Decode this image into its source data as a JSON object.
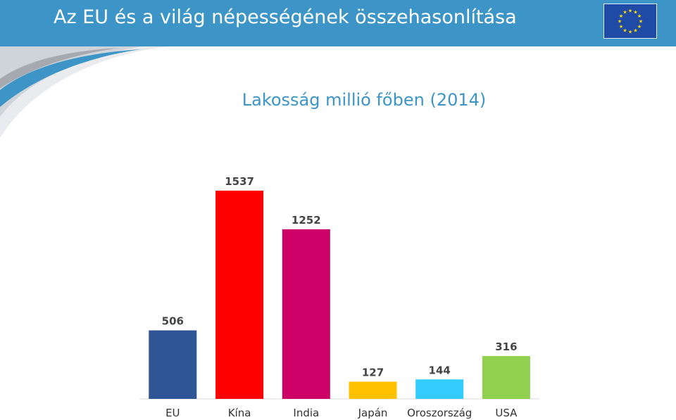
{
  "header": {
    "title": "Az EU és a világ népességének összehasonlítása",
    "logo": "eu-flag",
    "background": "#3c95c6"
  },
  "chart_data": {
    "type": "bar",
    "title": "Lakosság millió főben (2014)",
    "categories": [
      "EU",
      "Kína",
      "India",
      "Japán",
      "Oroszország",
      "USA"
    ],
    "values": [
      506,
      1537,
      1252,
      127,
      144,
      316
    ],
    "colors": [
      "#2f5597",
      "#ff0000",
      "#cc0066",
      "#ffc000",
      "#33ccff",
      "#92d050"
    ],
    "ylim": [
      0,
      1600
    ],
    "grid": false,
    "legend": "none",
    "data_labels": true
  }
}
